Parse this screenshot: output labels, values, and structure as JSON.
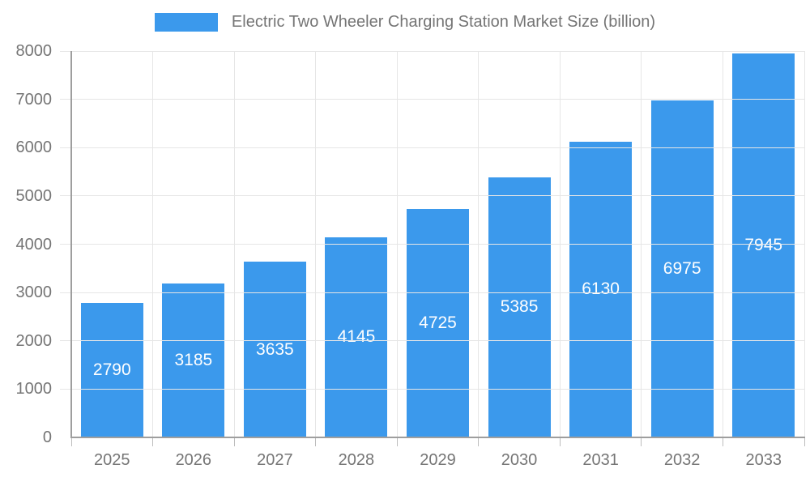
{
  "chart_data": {
    "type": "bar",
    "title": "Electric Two Wheeler Charging Station Market Size (billion)",
    "categories": [
      "2025",
      "2026",
      "2027",
      "2028",
      "2029",
      "2030",
      "2031",
      "2032",
      "2033"
    ],
    "values": [
      2790,
      3185,
      3635,
      4145,
      4725,
      5385,
      6130,
      6975,
      7945
    ],
    "xlabel": "",
    "ylabel": "",
    "ylim": [
      0,
      8000
    ],
    "yticks": [
      0,
      1000,
      2000,
      3000,
      4000,
      5000,
      6000,
      7000,
      8000
    ],
    "grid": true,
    "legend_position": "top-center",
    "bar_value_labels_inside": true,
    "colors": {
      "bar": "#3B99EC",
      "bar_value_label": "#ffffff",
      "text": "#757575",
      "axis_line": "#9e9e9e",
      "tick": "#bdbdbd",
      "grid_line": "#e6e6e6",
      "background": "#ffffff"
    }
  }
}
